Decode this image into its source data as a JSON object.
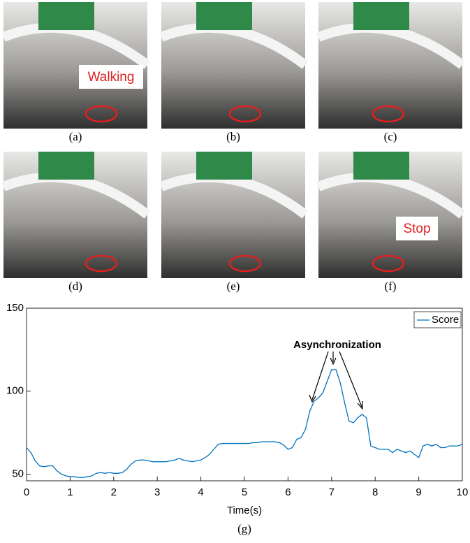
{
  "panels": [
    {
      "label": "(a)",
      "caption": "Walking"
    },
    {
      "label": "(b)"
    },
    {
      "label": "(c)"
    },
    {
      "label": "(d)"
    },
    {
      "label": "(e)"
    },
    {
      "label": "(f)",
      "caption": "Stop"
    }
  ],
  "chart_data": {
    "type": "line",
    "caption": "(g)",
    "xlabel": "Time(s)",
    "annotation": "Asynchronization",
    "x": [
      0,
      0.1,
      0.2,
      0.3,
      0.4,
      0.5,
      0.6,
      0.7,
      0.8,
      0.9,
      1,
      1.1,
      1.2,
      1.3,
      1.4,
      1.5,
      1.6,
      1.7,
      1.8,
      1.9,
      2,
      2.1,
      2.2,
      2.3,
      2.4,
      2.5,
      2.6,
      2.7,
      2.8,
      2.9,
      3,
      3.1,
      3.2,
      3.3,
      3.4,
      3.5,
      3.6,
      3.7,
      3.8,
      3.9,
      4,
      4.1,
      4.2,
      4.3,
      4.4,
      4.5,
      4.6,
      4.7,
      4.8,
      4.9,
      5,
      5.1,
      5.2,
      5.3,
      5.4,
      5.5,
      5.6,
      5.7,
      5.8,
      5.9,
      6,
      6.1,
      6.2,
      6.3,
      6.4,
      6.5,
      6.6,
      6.7,
      6.8,
      6.9,
      7,
      7.1,
      7.2,
      7.3,
      7.4,
      7.5,
      7.6,
      7.7,
      7.8,
      7.9,
      8,
      8.1,
      8.2,
      8.3,
      8.4,
      8.5,
      8.6,
      8.7,
      8.8,
      8.9,
      9,
      9.1,
      9.2,
      9.3,
      9.4,
      9.5,
      9.6,
      9.7,
      9.8,
      9.9,
      10
    ],
    "series": [
      {
        "name": "Score",
        "color": "#0072bd",
        "values": [
          66,
          63,
          58,
          55,
          54.5,
          55,
          55,
          52,
          50,
          49,
          48.5,
          48.5,
          48,
          48,
          48.5,
          49,
          50.5,
          51,
          50.5,
          51,
          50.5,
          50.5,
          51,
          53,
          56,
          58,
          58.5,
          58.5,
          58,
          57.5,
          57.5,
          57.5,
          57.5,
          58,
          58.5,
          59.5,
          58.5,
          58,
          57.5,
          58,
          58.5,
          60,
          62,
          65,
          68,
          68.5,
          68.5,
          68.5,
          68.5,
          68.5,
          68.5,
          68.5,
          69,
          69,
          69.5,
          69.5,
          69.5,
          69.5,
          69,
          67.5,
          65,
          66,
          71,
          72,
          77,
          88,
          94,
          96,
          99,
          106,
          113,
          113,
          105,
          93,
          82,
          81,
          84,
          86,
          84,
          67,
          66,
          65,
          65,
          65,
          63,
          65,
          64,
          63,
          64,
          62,
          60,
          67,
          68,
          67,
          68,
          66,
          66,
          67,
          67,
          67,
          68
        ]
      }
    ],
    "xlim": [
      0,
      10
    ],
    "ylim": [
      46,
      150
    ],
    "xticks": [
      0,
      1,
      2,
      3,
      4,
      5,
      6,
      7,
      8,
      9,
      10
    ],
    "yticks": [
      50,
      100,
      150
    ],
    "legend": "top-right"
  }
}
